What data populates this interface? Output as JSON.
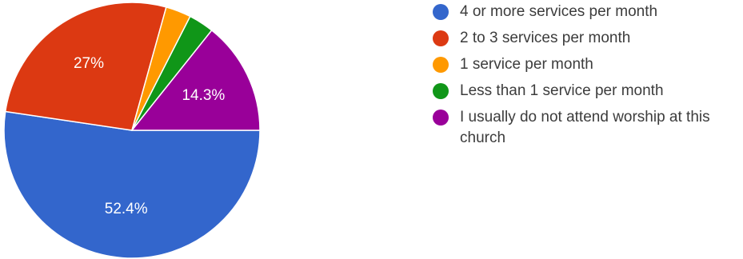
{
  "chart_data": {
    "type": "pie",
    "title": "",
    "slices": [
      {
        "label": "4 or more services per month",
        "value": 52.4,
        "color": "#3366cc",
        "data_label": "52.4%"
      },
      {
        "label": "2 to 3 services per month",
        "value": 27.0,
        "color": "#dc3912",
        "data_label": "27%"
      },
      {
        "label": "1 service per month",
        "value": 3.2,
        "color": "#ff9900",
        "data_label": ""
      },
      {
        "label": "Less than 1 service per month",
        "value": 3.2,
        "color": "#109618",
        "data_label": ""
      },
      {
        "label": "I usually do not attend worship at this church",
        "value": 14.3,
        "color": "#990099",
        "data_label": "14.3%"
      }
    ],
    "legend_placement": "right"
  }
}
